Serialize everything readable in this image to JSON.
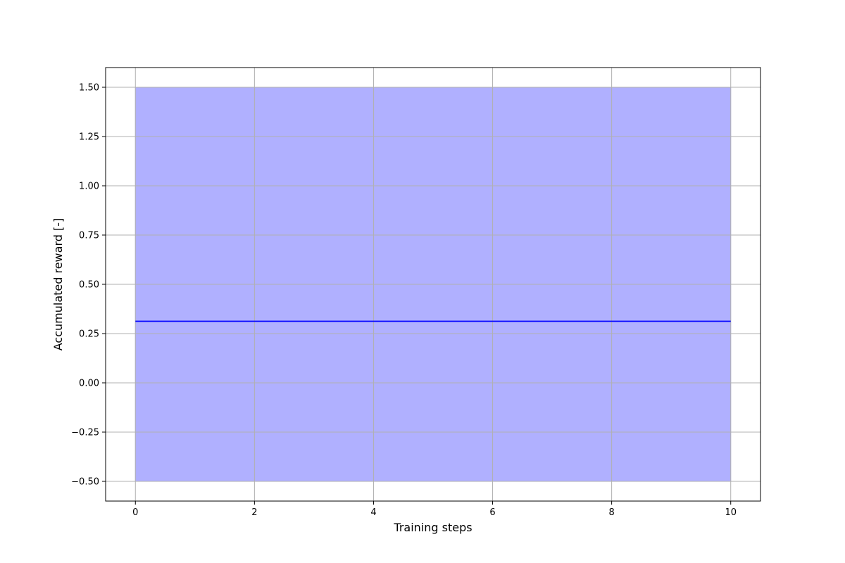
{
  "chart_data": {
    "type": "line",
    "title": "",
    "xlabel": "Training steps",
    "ylabel": "Accumulated reward [-]",
    "xlim": [
      -0.5,
      10.5
    ],
    "ylim": [
      -0.6,
      1.6
    ],
    "xticks": [
      0,
      2,
      4,
      6,
      8,
      10
    ],
    "xtick_labels": [
      "0",
      "2",
      "4",
      "6",
      "8",
      "10"
    ],
    "yticks": [
      -0.5,
      -0.25,
      0.0,
      0.25,
      0.5,
      0.75,
      1.0,
      1.25,
      1.5
    ],
    "ytick_labels": [
      "−0.50",
      "−0.25",
      "0.00",
      "0.25",
      "0.50",
      "0.75",
      "1.00",
      "1.25",
      "1.50"
    ],
    "grid": true,
    "series": [
      {
        "x": [
          0,
          10
        ],
        "y": [
          0.3125,
          0.3125
        ],
        "color": "#0000ff",
        "band_lower": [
          -0.5,
          -0.5
        ],
        "band_upper": [
          1.5,
          1.5
        ],
        "band_color": "#b0b0ff"
      }
    ]
  }
}
